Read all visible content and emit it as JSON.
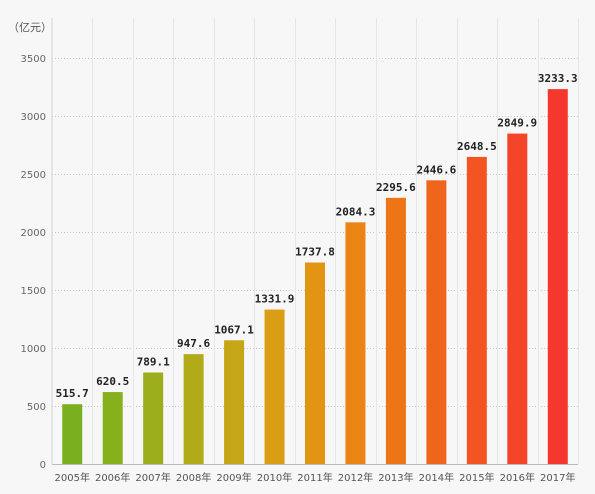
{
  "chart_data": {
    "type": "bar",
    "unit_label": "（亿元）",
    "categories": [
      "2005年",
      "2006年",
      "2007年",
      "2008年",
      "2009年",
      "2010年",
      "2011年",
      "2012年",
      "2013年",
      "2014年",
      "2015年",
      "2016年",
      "2017年"
    ],
    "values": [
      515.7,
      620.5,
      789.1,
      947.6,
      1067.1,
      1331.9,
      1737.8,
      2084.3,
      2295.6,
      2446.6,
      2648.5,
      2849.9,
      3233.3
    ],
    "data_labels": [
      "515.7",
      "620.5",
      "789.1",
      "947.6",
      "1067.1",
      "1331.9",
      "1737.8",
      "2084.3",
      "2295.6",
      "2446.6",
      "2648.5",
      "2849.9",
      "3233.3"
    ],
    "yticks": [
      0,
      500,
      1000,
      1500,
      2000,
      2500,
      3000,
      3500
    ],
    "ytick_labels": [
      "0",
      "500",
      "1000",
      "1500",
      "2000",
      "2500",
      "3000",
      "3500"
    ],
    "ylim": [
      0,
      3700
    ],
    "grid": true,
    "bar_colors": [
      "#7ab01f",
      "#86b01c",
      "#9cae1b",
      "#b2ab18",
      "#c4a616",
      "#d99e14",
      "#e39412",
      "#ea8513",
      "#ee7516",
      "#f0651c",
      "#f25522",
      "#f44528",
      "#f5372e"
    ]
  }
}
